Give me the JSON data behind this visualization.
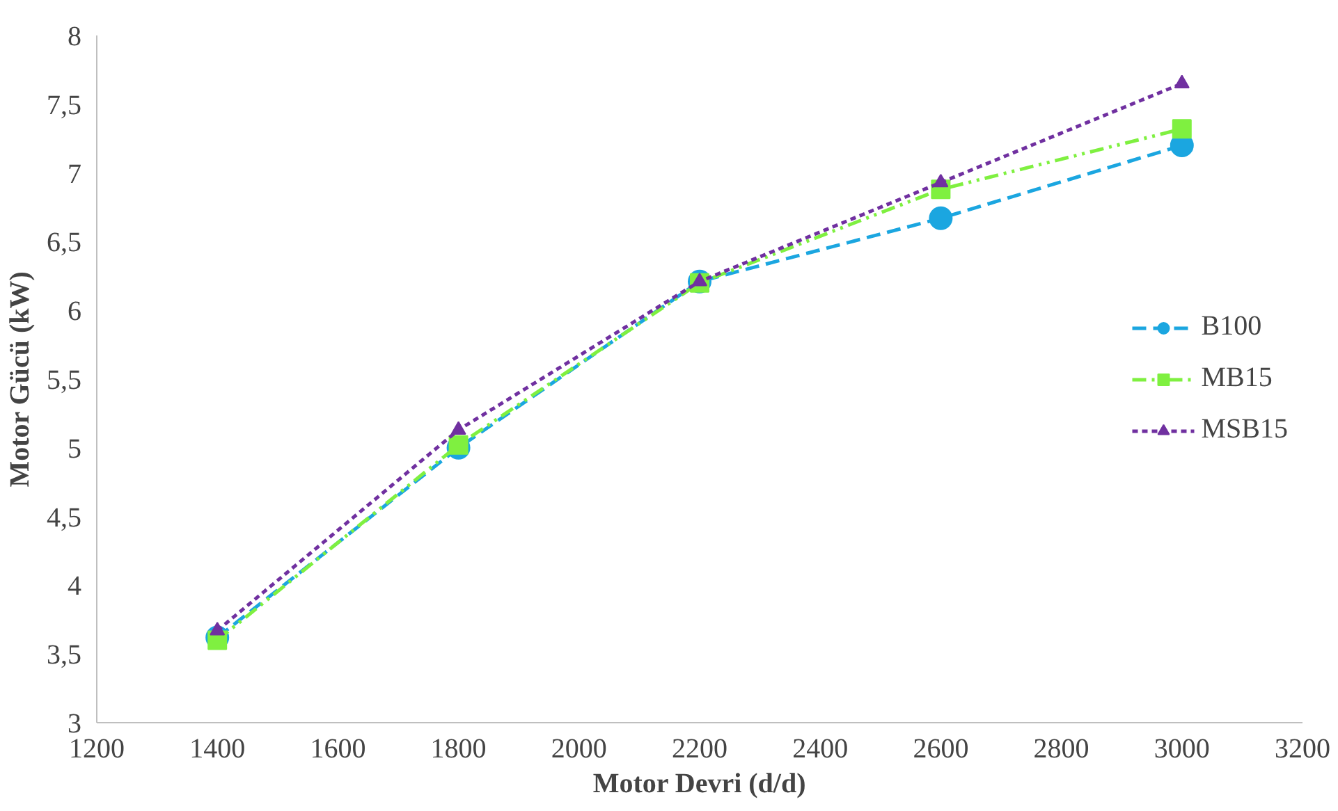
{
  "chart_data": {
    "type": "line",
    "xlabel": "Motor Devri (d/d)",
    "ylabel": "Motor Gücü (kW)",
    "x": [
      1400,
      1800,
      2200,
      2600,
      3000
    ],
    "xlim": [
      1200,
      3200
    ],
    "xticks": [
      1200,
      1400,
      1600,
      1800,
      2000,
      2200,
      2400,
      2600,
      2800,
      3000,
      3200
    ],
    "ylim": [
      3,
      8
    ],
    "yticks": [
      3,
      {
        "value": 3.5,
        "label": "3,5"
      },
      4,
      {
        "value": 4.5,
        "label": "4,5"
      },
      5,
      {
        "value": 5.5,
        "label": "5,5"
      },
      6,
      {
        "value": 6.5,
        "label": "6,5"
      },
      7,
      {
        "value": 7.5,
        "label": "7,5"
      },
      8
    ],
    "grid": false,
    "legend": "right",
    "series": [
      {
        "name": "B100",
        "color": "#1ba6e0",
        "values": [
          3.62,
          5.0,
          6.21,
          6.67,
          7.2
        ],
        "marker": "circle",
        "line_style": "longdash"
      },
      {
        "name": "MB15",
        "color": "#7ff040",
        "values": [
          3.6,
          5.02,
          6.2,
          6.88,
          7.32
        ],
        "marker": "square",
        "line_style": "dashdotdot"
      },
      {
        "name": "MSB15",
        "color": "#7030a0",
        "values": [
          3.67,
          5.13,
          6.21,
          6.93,
          7.65
        ],
        "marker": "triangle",
        "line_style": "dashed"
      }
    ]
  }
}
